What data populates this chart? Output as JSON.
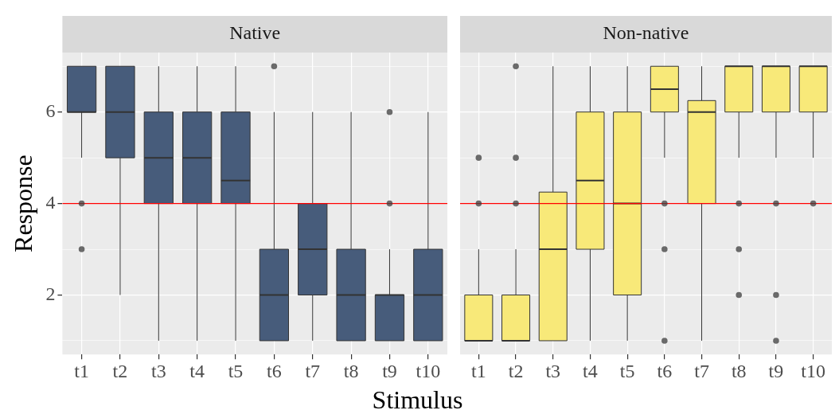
{
  "chart_data": [
    {
      "type": "box",
      "title": "Native",
      "ylabel": "Response",
      "xlabel": "Stimulus",
      "categories": [
        "t1",
        "t2",
        "t3",
        "t4",
        "t5",
        "t6",
        "t7",
        "t8",
        "t9",
        "t10"
      ],
      "color": "#475c7b",
      "ylim": [
        0.7,
        7.3
      ],
      "yticks": [
        {
          "value": 1,
          "label": null
        },
        2,
        {
          "value": 3,
          "label": null
        },
        4,
        {
          "value": 5,
          "label": null
        },
        6,
        {
          "value": 7,
          "label": null
        }
      ],
      "grid": true,
      "ref_lines": [
        {
          "axis": "y",
          "value": 4,
          "color": "#ff0000"
        }
      ],
      "boxes": [
        {
          "low": 5,
          "q1": 6,
          "median": 6,
          "q3": 7,
          "high": 7,
          "outliers": [
            4,
            3
          ]
        },
        {
          "low": 2,
          "q1": 5,
          "median": 6,
          "q3": 7,
          "high": 7
        },
        {
          "low": 1,
          "q1": 4,
          "median": 5,
          "q3": 6,
          "high": 7
        },
        {
          "low": 1,
          "q1": 4,
          "median": 5,
          "q3": 6,
          "high": 7
        },
        {
          "low": 1,
          "q1": 4,
          "median": 4.5,
          "q3": 6,
          "high": 7
        },
        {
          "low": 1,
          "q1": 1,
          "median": 2,
          "q3": 3,
          "high": 6,
          "outliers": [
            7
          ]
        },
        {
          "low": 1,
          "q1": 2,
          "median": 3,
          "q3": 4,
          "high": 6
        },
        {
          "low": 1,
          "q1": 1,
          "median": 2,
          "q3": 3,
          "high": 6
        },
        {
          "low": 1,
          "q1": 1,
          "median": 2,
          "q3": 2,
          "high": 3,
          "outliers": [
            6,
            4
          ]
        },
        {
          "low": 1,
          "q1": 1,
          "median": 2,
          "q3": 3,
          "high": 6
        }
      ]
    },
    {
      "type": "box",
      "title": "Non-native",
      "categories": [
        "t1",
        "t2",
        "t3",
        "t4",
        "t5",
        "t6",
        "t7",
        "t8",
        "t9",
        "t10"
      ],
      "color": "#f8e979",
      "ylim": [
        0.7,
        7.3
      ],
      "yticks": [
        {
          "value": 1,
          "label": null
        },
        2,
        {
          "value": 3,
          "label": null
        },
        4,
        {
          "value": 5,
          "label": null
        },
        6,
        {
          "value": 7,
          "label": null
        }
      ],
      "grid": true,
      "tick_labels": "x",
      "ref_lines": [
        {
          "axis": "y",
          "value": 4,
          "color": "#ff0000"
        }
      ],
      "boxes": [
        {
          "low": 1,
          "q1": 1,
          "median": 1,
          "q3": 2,
          "high": 3,
          "outliers": [
            5,
            4
          ]
        },
        {
          "low": 1,
          "q1": 1,
          "median": 1,
          "q3": 2,
          "high": 3,
          "outliers": [
            7,
            5,
            4
          ]
        },
        {
          "low": 1,
          "q1": 1,
          "median": 3,
          "q3": 4.25,
          "high": 7
        },
        {
          "low": 1,
          "q1": 3,
          "median": 4.5,
          "q3": 6,
          "high": 7
        },
        {
          "low": 1,
          "q1": 2,
          "median": 4,
          "q3": 6,
          "high": 7
        },
        {
          "low": 5,
          "q1": 6,
          "median": 6.5,
          "q3": 7,
          "high": 7,
          "outliers": [
            4,
            3,
            1
          ]
        },
        {
          "low": 1,
          "q1": 4,
          "median": 6,
          "q3": 6.25,
          "high": 7
        },
        {
          "low": 5,
          "q1": 6,
          "median": 7,
          "q3": 7,
          "high": 7,
          "outliers": [
            4,
            3,
            2
          ]
        },
        {
          "low": 5,
          "q1": 6,
          "median": 7,
          "q3": 7,
          "high": 7,
          "outliers": [
            4,
            2,
            1
          ]
        },
        {
          "low": 5,
          "q1": 6,
          "median": 7,
          "q3": 7,
          "high": 7,
          "outliers": [
            4
          ]
        }
      ]
    }
  ]
}
